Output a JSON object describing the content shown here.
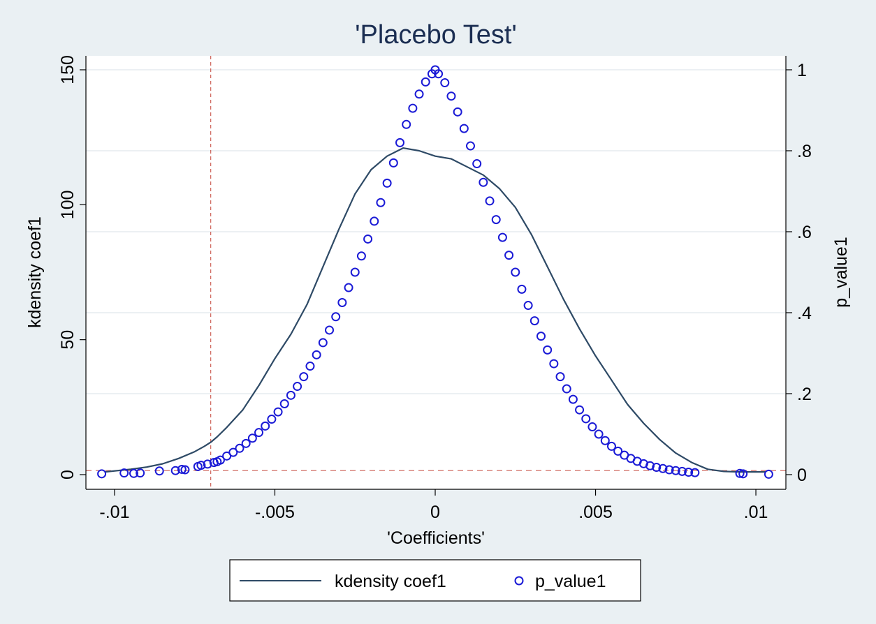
{
  "chart_data": {
    "type": "line+scatter",
    "title": "'Placebo Test'",
    "xlabel": "'Coefficients'",
    "ylabel_left": "kdensity coef1",
    "ylabel_right": "p_value1",
    "xlim": [
      -0.0105,
      0.0105
    ],
    "ylim_left": [
      0,
      150
    ],
    "ylim_right": [
      0,
      1
    ],
    "x_ticks": [
      {
        "value": -0.01,
        "label": "-.01"
      },
      {
        "value": -0.005,
        "label": "-.005"
      },
      {
        "value": 0,
        "label": "0"
      },
      {
        "value": 0.005,
        "label": ".005"
      },
      {
        "value": 0.01,
        "label": ".01"
      }
    ],
    "y_left_ticks": [
      {
        "value": 0,
        "label": "0"
      },
      {
        "value": 50,
        "label": "50"
      },
      {
        "value": 100,
        "label": "100"
      },
      {
        "value": 150,
        "label": "150"
      }
    ],
    "y_right_ticks": [
      {
        "value": 0,
        "label": "0"
      },
      {
        "value": 0.2,
        "label": ".2"
      },
      {
        "value": 0.4,
        "label": ".4"
      },
      {
        "value": 0.6,
        "label": ".6"
      },
      {
        "value": 0.8,
        "label": ".8"
      },
      {
        "value": 1,
        "label": "1"
      }
    ],
    "grid": "horizontal (right axis)",
    "reference_lines": {
      "vertical_x": -0.007,
      "horizontal_y_right": 0.01
    },
    "legend": {
      "placement": "bottom",
      "entries": [
        "kdensity coef1",
        "p_value1"
      ]
    },
    "series": [
      {
        "name": "kdensity coef1",
        "kind": "line",
        "axis": "left",
        "color": "#2e4a66",
        "x": [
          -0.0103,
          -0.0095,
          -0.009,
          -0.0085,
          -0.008,
          -0.0075,
          -0.0072,
          -0.007,
          -0.0068,
          -0.0065,
          -0.006,
          -0.0055,
          -0.005,
          -0.0045,
          -0.004,
          -0.0035,
          -0.003,
          -0.0025,
          -0.002,
          -0.0015,
          -0.001,
          -0.0005,
          0,
          0.0005,
          0.001,
          0.0015,
          0.002,
          0.0025,
          0.003,
          0.0035,
          0.004,
          0.0045,
          0.005,
          0.0055,
          0.006,
          0.0065,
          0.007,
          0.0075,
          0.008,
          0.0085,
          0.009,
          0.0095,
          0.0103
        ],
        "y": [
          1,
          2,
          2.8,
          4,
          6,
          8.5,
          10.5,
          12,
          14,
          17.5,
          24,
          33,
          43,
          52,
          63,
          77,
          91,
          104,
          113,
          118,
          121,
          120,
          118,
          117,
          114,
          111,
          106,
          99,
          89,
          77,
          65,
          54,
          44,
          35,
          26,
          19,
          13,
          8,
          4.5,
          2,
          1.2,
          1,
          1
        ]
      },
      {
        "name": "p_value1",
        "kind": "scatter",
        "axis": "right",
        "color": "#1a1ad6",
        "x": [
          -0.0104,
          -0.0097,
          -0.0094,
          -0.0092,
          -0.0086,
          -0.0081,
          -0.0079,
          -0.0078,
          -0.0074,
          -0.0073,
          -0.0071,
          -0.0069,
          -0.0068,
          -0.0067,
          -0.0065,
          -0.0063,
          -0.0061,
          -0.0059,
          -0.0057,
          -0.0055,
          -0.0053,
          -0.0051,
          -0.0049,
          -0.0047,
          -0.0045,
          -0.0043,
          -0.0041,
          -0.0039,
          -0.0037,
          -0.0035,
          -0.0033,
          -0.0031,
          -0.0029,
          -0.0027,
          -0.0025,
          -0.0023,
          -0.0021,
          -0.0019,
          -0.0017,
          -0.0015,
          -0.0013,
          -0.0011,
          -0.0009,
          -0.0007,
          -0.0005,
          -0.0003,
          -0.0001,
          0,
          0.0001,
          0.0003,
          0.0005,
          0.0007,
          0.0009,
          0.0011,
          0.0013,
          0.0015,
          0.0017,
          0.0019,
          0.0021,
          0.0023,
          0.0025,
          0.0027,
          0.0029,
          0.0031,
          0.0033,
          0.0035,
          0.0037,
          0.0039,
          0.0041,
          0.0043,
          0.0045,
          0.0047,
          0.0049,
          0.0051,
          0.0053,
          0.0055,
          0.0057,
          0.0059,
          0.0061,
          0.0063,
          0.0065,
          0.0067,
          0.0069,
          0.0071,
          0.0073,
          0.0075,
          0.0077,
          0.0079,
          0.0081,
          0.0095,
          0.0096,
          0.0104
        ],
        "y": [
          0.002,
          0.004,
          0.003,
          0.004,
          0.009,
          0.01,
          0.013,
          0.012,
          0.02,
          0.023,
          0.026,
          0.03,
          0.032,
          0.036,
          0.046,
          0.055,
          0.065,
          0.077,
          0.09,
          0.104,
          0.12,
          0.137,
          0.155,
          0.175,
          0.196,
          0.218,
          0.242,
          0.268,
          0.296,
          0.326,
          0.357,
          0.39,
          0.425,
          0.462,
          0.5,
          0.54,
          0.582,
          0.626,
          0.672,
          0.72,
          0.77,
          0.82,
          0.865,
          0.905,
          0.94,
          0.97,
          0.99,
          1.0,
          0.99,
          0.968,
          0.935,
          0.896,
          0.855,
          0.812,
          0.768,
          0.722,
          0.676,
          0.63,
          0.586,
          0.542,
          0.5,
          0.458,
          0.418,
          0.38,
          0.342,
          0.308,
          0.274,
          0.242,
          0.212,
          0.186,
          0.16,
          0.138,
          0.118,
          0.1,
          0.084,
          0.07,
          0.058,
          0.048,
          0.04,
          0.033,
          0.027,
          0.022,
          0.018,
          0.015,
          0.012,
          0.01,
          0.008,
          0.006,
          0.005,
          0.003,
          0.002,
          0.001
        ]
      }
    ]
  }
}
